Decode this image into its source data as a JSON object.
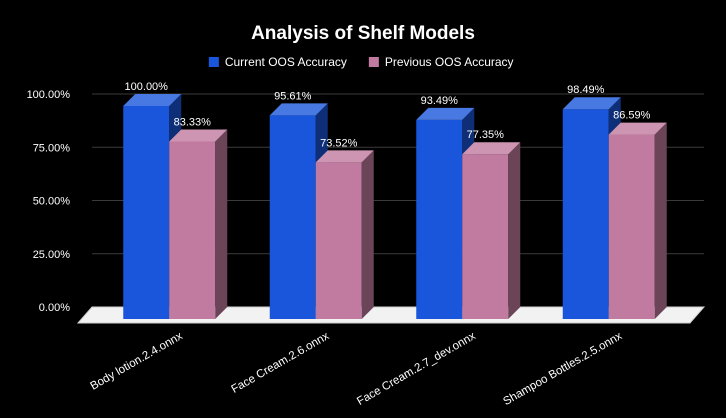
{
  "chart_data": {
    "type": "bar",
    "title": "Analysis of Shelf Models",
    "categories": [
      "Body lotion.2.4.onnx",
      "Face Cream.2.6.onnx",
      "Face Cream.2.7_dev.onnx",
      "Shampoo Bottles.2.5.onnx"
    ],
    "series": [
      {
        "name": "Current OOS Accuracy",
        "values": [
          100.0,
          95.61,
          93.49,
          98.49
        ],
        "labels": [
          "100.00%",
          "95.61%",
          "93.49%",
          "98.49%"
        ],
        "color": "#1a56db"
      },
      {
        "name": "Previous OOS Accuracy",
        "values": [
          83.33,
          73.52,
          77.35,
          86.59
        ],
        "labels": [
          "83.33%",
          "73.52%",
          "77.35%",
          "86.59%"
        ],
        "color": "#c27ba0"
      }
    ],
    "y_ticks": [
      "0.00%",
      "25.00%",
      "50.00%",
      "75.00%",
      "100.00%"
    ],
    "y_tick_values": [
      0,
      25,
      50,
      75,
      100
    ],
    "ylim": [
      0,
      100
    ],
    "legend_position": "top",
    "grid": true,
    "style": "3d",
    "background": "#000000"
  }
}
